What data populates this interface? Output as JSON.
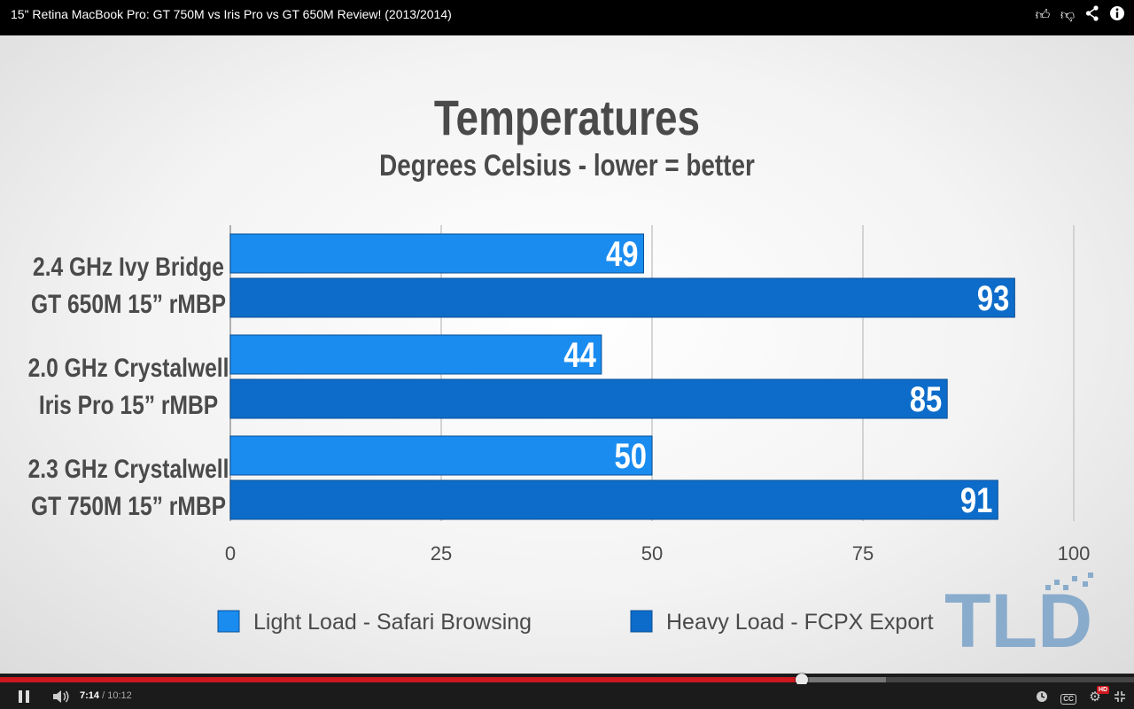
{
  "video": {
    "title": "15\" Retina MacBook Pro: GT 750M vs Iris Pro vs GT 650M Review! (2013/2014)",
    "current_time": "7:14",
    "separator": " / ",
    "duration": "10:12",
    "played_fraction": 0.707,
    "buffered_fraction": 0.781,
    "icons": {
      "like": "thumbs-up-icon",
      "dislike": "thumbs-down-icon",
      "share": "share-icon",
      "info": "info-icon",
      "play_pause": "pause-icon",
      "volume": "volume-icon",
      "watch_later": "clock-icon",
      "captions": "captions-icon",
      "settings": "gear-icon",
      "fullscreen": "exit-fullscreen-icon"
    },
    "captions_label": "CC",
    "hd_label": "HD"
  },
  "chart_data": {
    "type": "bar",
    "orientation": "horizontal",
    "title": "Temperatures",
    "subtitle": "Degrees Celsius - lower = better",
    "categories": [
      [
        "2.4 GHz Ivy Bridge",
        "GT 650M 15” rMBP"
      ],
      [
        "2.0 GHz Crystalwell",
        "Iris Pro 15” rMBP"
      ],
      [
        "2.3 GHz Crystalwell",
        "GT 750M 15” rMBP"
      ]
    ],
    "series": [
      {
        "name": "Light Load - Safari Browsing",
        "color": "#1a8cf0",
        "values": [
          49,
          44,
          50
        ]
      },
      {
        "name": "Heavy Load - FCPX Export",
        "color": "#0d6cc9",
        "values": [
          93,
          85,
          91
        ]
      }
    ],
    "xlim": [
      0,
      100
    ],
    "xticks": [
      "0",
      "25",
      "50",
      "75",
      "100"
    ],
    "grid": true,
    "legend_position": "bottom"
  },
  "watermark": {
    "text": "TLD",
    "color": "#7aa2c8"
  }
}
